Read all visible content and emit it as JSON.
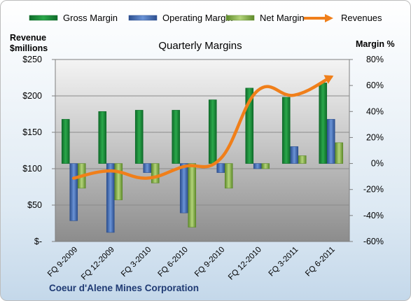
{
  "chart_data": {
    "type": "bar",
    "title": "Quarterly Margins",
    "company": "Coeur d'Alene Mines Corporation",
    "ylabel_left": [
      "Revenue",
      "$millions"
    ],
    "ylabel_right": "Margin %",
    "categories": [
      "FQ 9-2009",
      "FQ 12-2009",
      "FQ 3-2010",
      "FQ 6-2010",
      "FQ 9-2010",
      "FQ 12-2010",
      "FQ 3-2011",
      "FQ 6-2011"
    ],
    "y_left_ticks": [
      "$-",
      "$50",
      "$100",
      "$150",
      "$200",
      "$250"
    ],
    "y_left_range": [
      0,
      250
    ],
    "y_right_ticks": [
      "-60%",
      "-40%",
      "-20%",
      "0%",
      "20%",
      "40%",
      "60%",
      "80%"
    ],
    "y_right_range": [
      -60,
      80
    ],
    "legend_position": "top",
    "series": [
      {
        "name": "Gross Margin",
        "axis": "right",
        "kind": "bar",
        "color": "#1e8c3a",
        "values": [
          34,
          40,
          41,
          41,
          49,
          58,
          51,
          62
        ]
      },
      {
        "name": "Operating Margin",
        "axis": "right",
        "kind": "bar",
        "color": "#4472c4",
        "values": [
          -44,
          -53,
          -7,
          -38,
          -7,
          -4,
          13,
          34
        ]
      },
      {
        "name": "Net Margin",
        "axis": "right",
        "kind": "bar",
        "color": "#8cb84a",
        "values": [
          -19,
          -28,
          -15,
          -49,
          -19,
          -4,
          6,
          16
        ]
      },
      {
        "name": "Revenues",
        "axis": "left",
        "kind": "line",
        "color": "#f07f1a",
        "values": [
          87,
          97,
          87,
          103,
          114,
          207,
          201,
          226
        ]
      }
    ]
  }
}
